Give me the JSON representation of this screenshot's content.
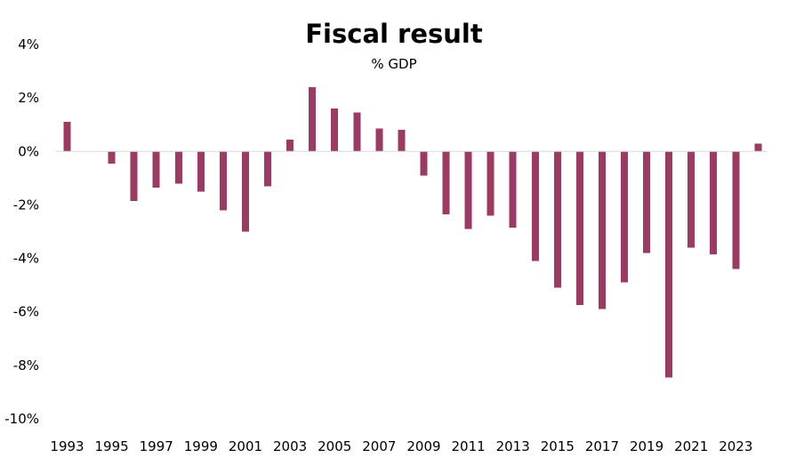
{
  "colors": {
    "bar": "#9b3a63",
    "axis": "#d9d9d9",
    "text": "#000000"
  },
  "chart_data": {
    "type": "bar",
    "title": "Fiscal result",
    "subtitle": "% GDP",
    "xlabel": "",
    "ylabel": "",
    "ylim": [
      -10,
      4
    ],
    "yticks": [
      4,
      2,
      0,
      -2,
      -4,
      -6,
      -8,
      -10
    ],
    "ytick_labels": [
      "4%",
      "2%",
      "0%",
      "-2%",
      "-4%",
      "-6%",
      "-8%",
      "-10%"
    ],
    "xtick_labels": [
      "1993",
      "1995",
      "1997",
      "1999",
      "2001",
      "2003",
      "2005",
      "2007",
      "2009",
      "2011",
      "2013",
      "2015",
      "2017",
      "2019",
      "2021",
      "2023"
    ],
    "categories": [
      1993,
      1994,
      1995,
      1996,
      1997,
      1998,
      1999,
      2000,
      2001,
      2002,
      2003,
      2004,
      2005,
      2006,
      2007,
      2008,
      2009,
      2010,
      2011,
      2012,
      2013,
      2014,
      2015,
      2016,
      2017,
      2018,
      2019,
      2020,
      2021,
      2022,
      2023,
      2024
    ],
    "series": [
      {
        "name": "Fiscal result",
        "values": [
          1.1,
          null,
          -0.45,
          -1.85,
          -1.35,
          -1.2,
          -1.5,
          -2.2,
          -3.0,
          -1.3,
          0.45,
          2.4,
          1.6,
          1.45,
          0.85,
          0.8,
          -0.9,
          -2.35,
          -2.9,
          -2.4,
          -2.85,
          -4.1,
          -5.1,
          -5.75,
          -5.9,
          -4.9,
          -3.8,
          -8.45,
          -3.6,
          -3.85,
          -4.4,
          0.3
        ]
      }
    ]
  }
}
